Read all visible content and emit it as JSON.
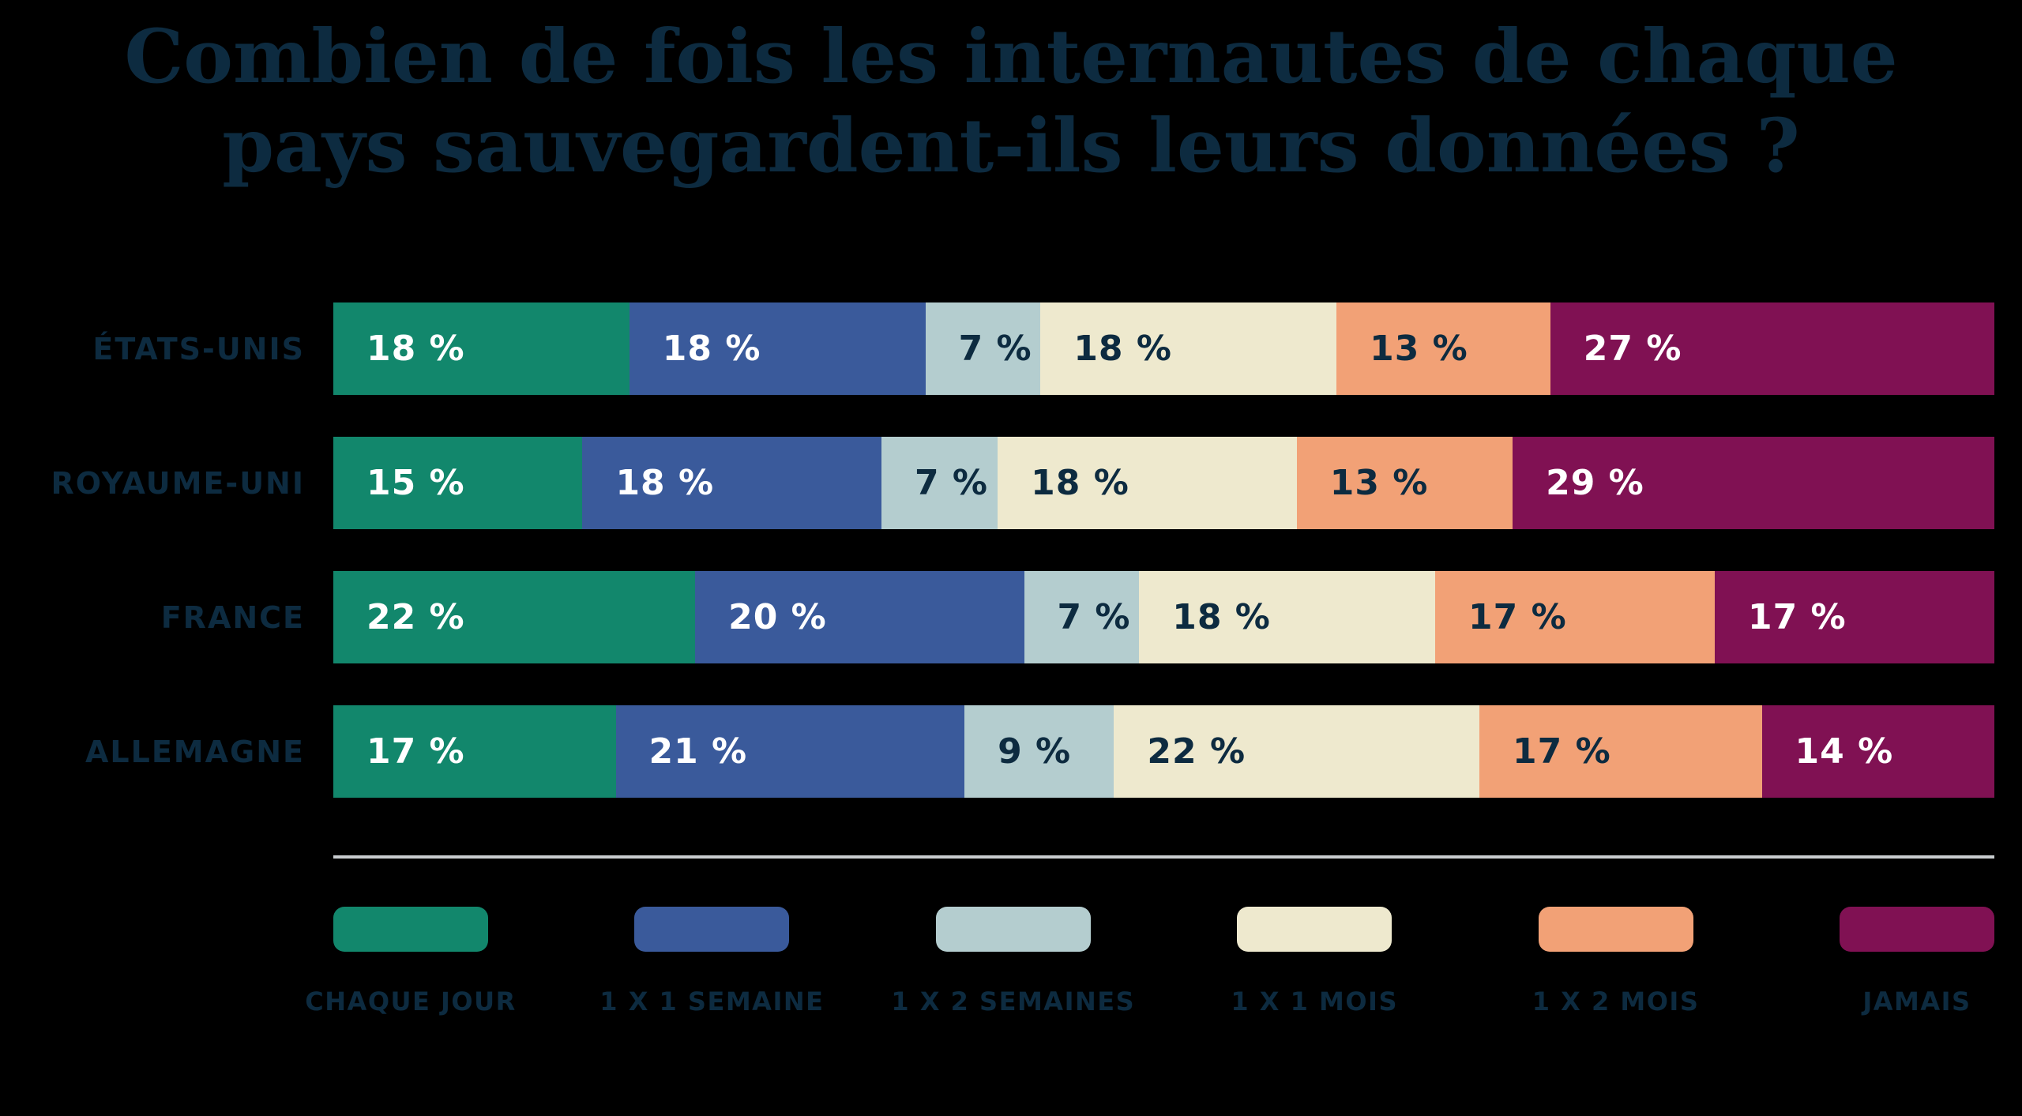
{
  "title": {
    "line1": "Combien de fois les internautes de chaque",
    "line2": "pays sauvegardent-ils leurs données ?"
  },
  "colors": {
    "background": "#000000",
    "title_text": "#0D2B40",
    "dark_label": "#0D2B40",
    "light_label": "#FFFFFF",
    "divider": "#C9CDD0",
    "teal": "#12876C",
    "blue": "#3A5A9B",
    "light_blue": "#B4CDCF",
    "cream": "#EEE9CE",
    "orange": "#F2A176",
    "magenta": "#801153"
  },
  "legend": [
    {
      "key": "chaque-jour",
      "label": "CHAQUE JOUR",
      "color": "#12876C",
      "value_text_color": "#FFFFFF"
    },
    {
      "key": "1x1-semaine",
      "label": "1 X 1 SEMAINE",
      "color": "#3A5A9B",
      "value_text_color": "#FFFFFF"
    },
    {
      "key": "1x2-semaines",
      "label": "1 X 2 SEMAINES",
      "color": "#B4CDCF",
      "value_text_color": "#0D2B40"
    },
    {
      "key": "1x1-mois",
      "label": "1 X 1 MOIS",
      "color": "#EEE9CE",
      "value_text_color": "#0D2B40"
    },
    {
      "key": "1x2-mois",
      "label": "1 X 2 MOIS",
      "color": "#F2A176",
      "value_text_color": "#0D2B40"
    },
    {
      "key": "jamais",
      "label": "JAMAIS",
      "color": "#801153",
      "value_text_color": "#FFFFFF"
    }
  ],
  "rows": [
    {
      "country": "ÉTATS-UNIS",
      "values": [
        18,
        18,
        7,
        18,
        13,
        27
      ],
      "labels": [
        "18 %",
        "18 %",
        "7 %",
        "18 %",
        "13 %",
        "27 %"
      ]
    },
    {
      "country": "ROYAUME-UNI",
      "values": [
        15,
        18,
        7,
        18,
        13,
        29
      ],
      "labels": [
        "15 %",
        "18 %",
        "7 %",
        "18 %",
        "13 %",
        "29 %"
      ]
    },
    {
      "country": "FRANCE",
      "values": [
        22,
        20,
        7,
        18,
        17,
        17
      ],
      "labels": [
        "22 %",
        "20 %",
        "7 %",
        "18 %",
        "17 %",
        "17 %"
      ]
    },
    {
      "country": "ALLEMAGNE",
      "values": [
        17,
        21,
        9,
        22,
        17,
        14
      ],
      "labels": [
        "17 %",
        "21 %",
        "9 %",
        "22 %",
        "17 %",
        "14 %"
      ]
    }
  ],
  "chart_data": {
    "type": "bar",
    "subtype": "horizontal-stacked-100",
    "title": "Combien de fois les internautes de chaque pays sauvegardent-ils leurs données ?",
    "categories": [
      "ÉTATS-UNIS",
      "ROYAUME-UNI",
      "FRANCE",
      "ALLEMAGNE"
    ],
    "series": [
      {
        "name": "CHAQUE JOUR",
        "values": [
          18,
          15,
          22,
          17
        ],
        "color": "#12876C"
      },
      {
        "name": "1 X 1 SEMAINE",
        "values": [
          18,
          18,
          20,
          21
        ],
        "color": "#3A5A9B"
      },
      {
        "name": "1 X 2 SEMAINES",
        "values": [
          7,
          7,
          7,
          9
        ],
        "color": "#B4CDCF"
      },
      {
        "name": "1 X 1 MOIS",
        "values": [
          18,
          18,
          18,
          22
        ],
        "color": "#EEE9CE"
      },
      {
        "name": "1 X 2 MOIS",
        "values": [
          13,
          13,
          17,
          17
        ],
        "color": "#F2A176"
      },
      {
        "name": "JAMAIS",
        "values": [
          27,
          29,
          17,
          14
        ],
        "color": "#801153"
      }
    ],
    "unit": "%",
    "xlabel": "",
    "ylabel": "",
    "xlim": [
      0,
      100
    ],
    "grid": false,
    "legend_position": "bottom",
    "data_labels": true
  }
}
